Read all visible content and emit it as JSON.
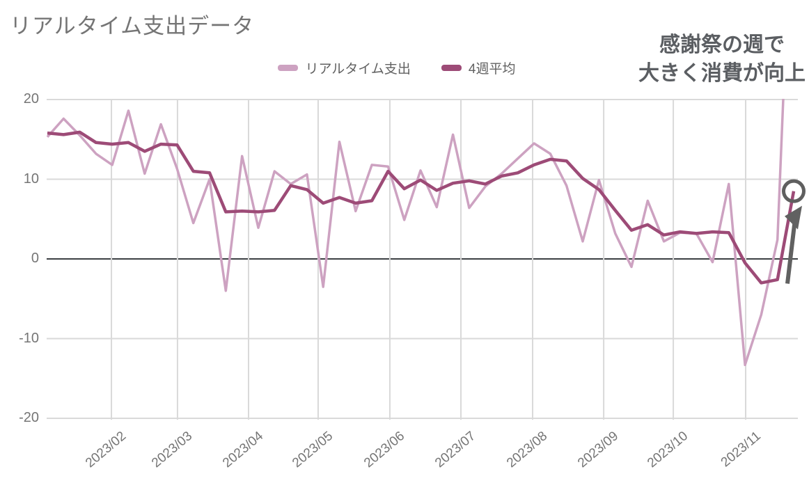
{
  "header": {
    "title": "リアルタイム支出データ"
  },
  "legend": {
    "items": [
      {
        "label": "リアルタイム支出",
        "color": "#cda2c1"
      },
      {
        "label": "4週平均",
        "color": "#9d4b77"
      }
    ]
  },
  "annotation": {
    "line1": "感謝祭の週で",
    "line2": "大きく消費が向上"
  },
  "chart_data": {
    "type": "line",
    "title": "リアルタイム支出データ",
    "x_unit": "week",
    "x_tick_labels": [
      "2023/02",
      "2023/03",
      "2023/04",
      "2023/05",
      "2023/06",
      "2023/07",
      "2023/08",
      "2023/09",
      "2023/10",
      "2023/11"
    ],
    "x_tick_positions_week_index": [
      3.95,
      8.02,
      12.4,
      16.69,
      21.11,
      25.49,
      29.91,
      34.29,
      38.58,
      43.04
    ],
    "y_ticks": [
      20,
      10,
      0,
      -10,
      -20
    ],
    "y_tick_labels": [
      "20",
      "10",
      "0",
      "-10",
      "-20"
    ],
    "ylim": [
      -20,
      20
    ],
    "grid": true,
    "legend_position": "top",
    "series": [
      {
        "name": "リアルタイム支出",
        "color": "#cda2c1",
        "line_width": 3.5,
        "values": [
          15.3,
          17.6,
          15.5,
          13.2,
          11.8,
          18.6,
          10.7,
          16.9,
          11.3,
          4.5,
          10.0,
          -4.0,
          12.9,
          3.9,
          11.0,
          9.4,
          10.6,
          -3.5,
          14.7,
          6.0,
          11.8,
          11.6,
          4.9,
          11.1,
          6.5,
          15.6,
          6.4,
          9.1,
          10.7,
          12.6,
          14.5,
          13.2,
          9.2,
          2.2,
          9.9,
          3.2,
          -1.0,
          7.3,
          2.2,
          3.3,
          3.2,
          -0.4,
          9.4,
          -13.3,
          -7.0,
          2.4,
          52.0
        ]
      },
      {
        "name": "4週平均",
        "color": "#9d4b77",
        "line_width": 4.5,
        "values": [
          15.8,
          15.6,
          15.9,
          14.6,
          14.4,
          14.6,
          13.5,
          14.4,
          14.3,
          11.0,
          10.8,
          5.9,
          6.0,
          5.9,
          6.1,
          9.2,
          8.7,
          7.0,
          7.7,
          7.0,
          7.3,
          11.0,
          8.8,
          9.9,
          8.6,
          9.5,
          9.8,
          9.4,
          10.4,
          10.8,
          11.8,
          12.5,
          12.3,
          10.1,
          8.7,
          6.1,
          3.6,
          4.3,
          3.0,
          3.4,
          3.2,
          3.4,
          3.3,
          -0.5,
          -3.0,
          -2.6,
          8.5
        ]
      }
    ],
    "clip_note": "last リアルタイム支出 value exceeds ylim and is clipped at top of plot",
    "end_marker": {
      "shape": "circle",
      "series": "4週平均",
      "value": 8.5,
      "color": "#5f5f5f"
    },
    "arrow_annotation": {
      "direction": "up",
      "color": "#616161"
    },
    "colors": {
      "grid": "#d9d9d9",
      "zero_line": "#3c4043",
      "axis_text": "#757575",
      "title_text": "#757575",
      "annotation_text": "#5b5e62"
    }
  }
}
